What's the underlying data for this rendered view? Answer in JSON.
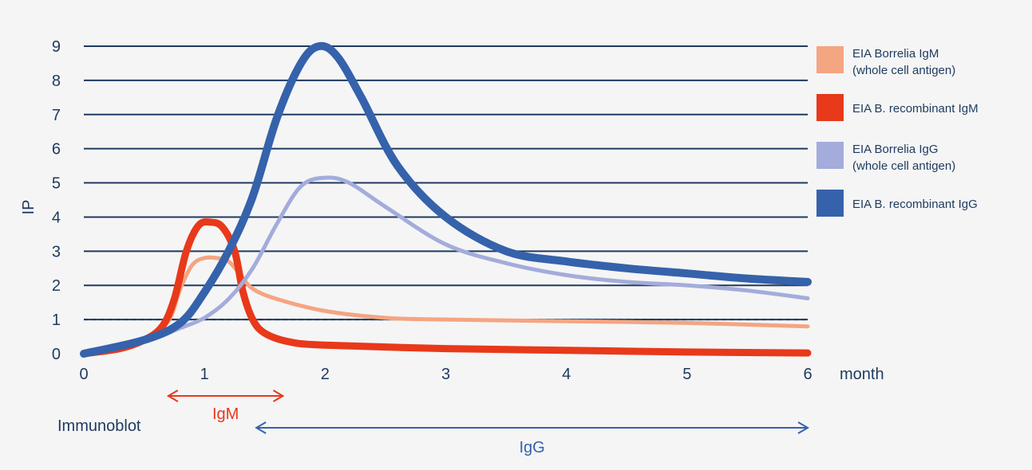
{
  "chart_data": {
    "type": "line",
    "xlabel": "month",
    "ylabel": "IP",
    "xlim": [
      0,
      6
    ],
    "ylim": [
      0,
      9
    ],
    "x_ticks": [
      "0",
      "1",
      "2",
      "3",
      "4",
      "5",
      "6"
    ],
    "y_ticks": [
      "0",
      "1",
      "2",
      "3",
      "4",
      "5",
      "6",
      "7",
      "8",
      "9"
    ],
    "grid": "horizontal",
    "threshold": {
      "value": 1,
      "style": "dashed"
    },
    "legend_position": "right",
    "series": [
      {
        "key": "borrelia_igm",
        "legend": [
          "EIA Borrelia IgM",
          "(whole cell antigen)"
        ],
        "color": "#f4a582",
        "x": [
          0,
          0.3,
          0.5,
          0.7,
          0.8,
          0.9,
          1.0,
          1.1,
          1.2,
          1.3,
          1.4,
          1.6,
          2.0,
          2.5,
          3.0,
          4.0,
          5.0,
          6.0
        ],
        "y": [
          0,
          0.15,
          0.4,
          0.95,
          1.9,
          2.6,
          2.8,
          2.8,
          2.7,
          2.3,
          1.9,
          1.6,
          1.25,
          1.05,
          1.0,
          0.95,
          0.9,
          0.8
        ]
      },
      {
        "key": "recombinant_igm",
        "legend": [
          "EIA B. recombinant IgM"
        ],
        "color": "#e8391a",
        "x": [
          0,
          0.3,
          0.5,
          0.65,
          0.75,
          0.85,
          0.95,
          1.05,
          1.15,
          1.25,
          1.32,
          1.4,
          1.5,
          1.7,
          2.0,
          3.0,
          4.0,
          5.0,
          6.0
        ],
        "y": [
          0,
          0.15,
          0.4,
          0.8,
          1.6,
          3.0,
          3.75,
          3.85,
          3.7,
          3.0,
          1.8,
          1.0,
          0.6,
          0.35,
          0.25,
          0.15,
          0.1,
          0.05,
          0.02
        ]
      },
      {
        "key": "borrelia_igg",
        "legend": [
          "EIA Borrelia IgG",
          "(whole cell antigen)"
        ],
        "color": "#a3acdb",
        "x": [
          0,
          0.5,
          0.8,
          1.0,
          1.2,
          1.4,
          1.6,
          1.8,
          2.0,
          2.2,
          2.5,
          3.0,
          3.5,
          4.0,
          4.5,
          5.0,
          5.5,
          6.0
        ],
        "y": [
          0,
          0.35,
          0.75,
          1.05,
          1.6,
          2.5,
          3.8,
          4.9,
          5.15,
          5.0,
          4.3,
          3.2,
          2.65,
          2.3,
          2.1,
          2.0,
          1.85,
          1.62
        ]
      },
      {
        "key": "recombinant_igg",
        "legend": [
          "EIA B. recombinant IgG"
        ],
        "color": "#3562ab",
        "x": [
          0,
          0.5,
          0.8,
          1.0,
          1.2,
          1.4,
          1.6,
          1.8,
          1.95,
          2.1,
          2.3,
          2.6,
          3.0,
          3.5,
          4.0,
          4.5,
          5.0,
          5.5,
          6.0
        ],
        "y": [
          0,
          0.4,
          0.9,
          1.8,
          3.0,
          4.6,
          6.9,
          8.5,
          9.0,
          8.7,
          7.5,
          5.5,
          4.0,
          3.0,
          2.7,
          2.5,
          2.35,
          2.2,
          2.1
        ]
      }
    ]
  },
  "annotations": {
    "immunoblot_label": "Immunoblot",
    "igm_label": "IgM",
    "igm_range": [
      0.7,
      1.65
    ],
    "igm_color": "#e8391a",
    "igg_label": "IgG",
    "igg_range": [
      1.43,
      6.0
    ],
    "igg_color": "#3562ab"
  },
  "colors": {
    "axis_text": "#1e3a5f",
    "grid": "#1e3a5f",
    "background": "#f5f5f5"
  }
}
